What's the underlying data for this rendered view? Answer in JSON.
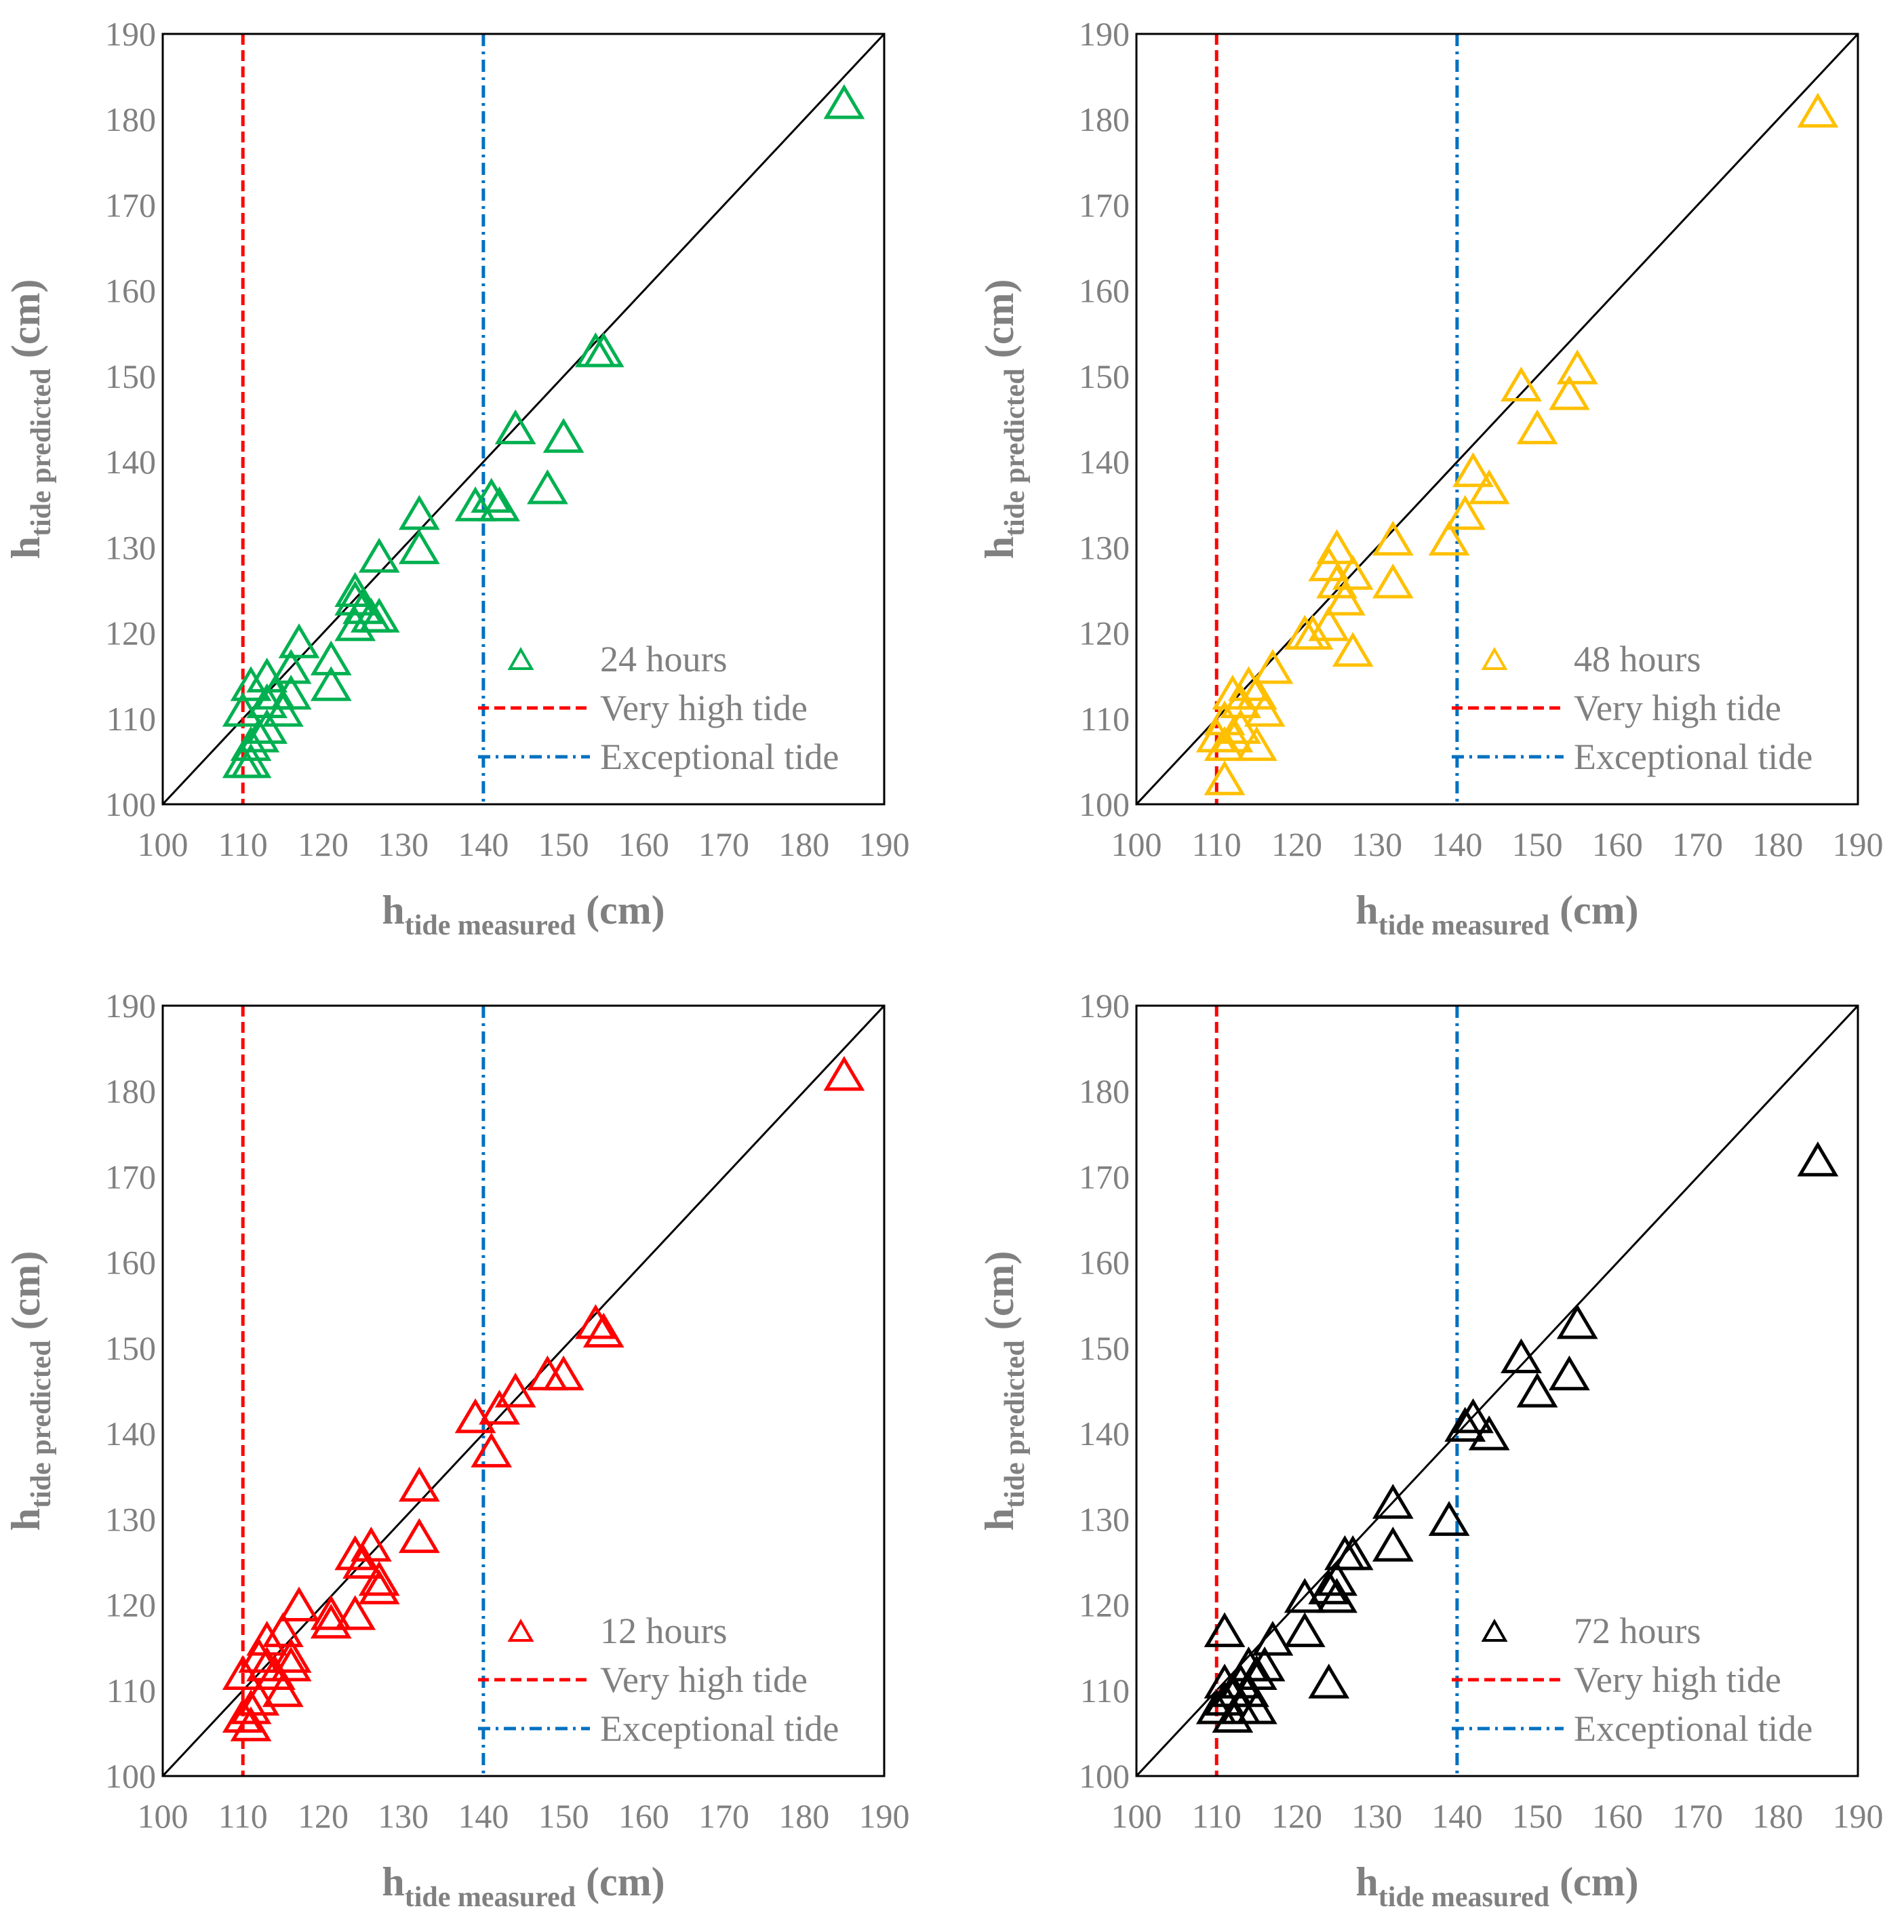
{
  "chart_data": [
    {
      "type": "scatter",
      "xlabel": {
        "main": "h",
        "sub": "tide measured",
        "unit": " (cm)"
      },
      "ylabel": {
        "main": "h",
        "sub": "tide predicted",
        "unit": " (cm)"
      },
      "xlim": [
        100,
        190
      ],
      "ylim": [
        100,
        190
      ],
      "ticks": [
        100,
        110,
        120,
        130,
        140,
        150,
        160,
        170,
        180,
        190
      ],
      "grid": false,
      "legend_position": "bottom-right",
      "reference_line": "y = x",
      "thresholds": [
        {
          "label": "Very high tide",
          "value": 110,
          "color": "#ff0000",
          "style": "dashed"
        },
        {
          "label": "Exceptional tide",
          "value": 140,
          "color": "#0070c0",
          "style": "dash-dot"
        }
      ],
      "series": [
        {
          "name": "24 hours",
          "color": "#00b050",
          "marker": "triangle-open",
          "points": [
            [
              185,
              182
            ],
            [
              155,
              153
            ],
            [
              154,
              153
            ],
            [
              150,
              143
            ],
            [
              148,
              137
            ],
            [
              144,
              144
            ],
            [
              142,
              135
            ],
            [
              141,
              136
            ],
            [
              139,
              135
            ],
            [
              132,
              134
            ],
            [
              132,
              130
            ],
            [
              127,
              129
            ],
            [
              127,
              122
            ],
            [
              126,
              122
            ],
            [
              125,
              123
            ],
            [
              124,
              125
            ],
            [
              124,
              124
            ],
            [
              124,
              121
            ],
            [
              121,
              117
            ],
            [
              121,
              114
            ],
            [
              117,
              119
            ],
            [
              116,
              116
            ],
            [
              116,
              113
            ],
            [
              115,
              111
            ],
            [
              114,
              113
            ],
            [
              113,
              115
            ],
            [
              113,
              112
            ],
            [
              113,
              109
            ],
            [
              112,
              108
            ],
            [
              111,
              114
            ],
            [
              111,
              107
            ],
            [
              111,
              105
            ],
            [
              110,
              111
            ],
            [
              110,
              105
            ]
          ]
        }
      ]
    },
    {
      "type": "scatter",
      "xlabel": {
        "main": "h",
        "sub": "tide measured",
        "unit": " (cm)"
      },
      "ylabel": {
        "main": "h",
        "sub": "tide predicted",
        "unit": " (cm)"
      },
      "xlim": [
        100,
        190
      ],
      "ylim": [
        100,
        190
      ],
      "ticks": [
        100,
        110,
        120,
        130,
        140,
        150,
        160,
        170,
        180,
        190
      ],
      "grid": false,
      "legend_position": "bottom-right",
      "reference_line": "y = x",
      "thresholds": [
        {
          "label": "Very high tide",
          "value": 110,
          "color": "#ff0000",
          "style": "dashed"
        },
        {
          "label": "Exceptional tide",
          "value": 140,
          "color": "#0070c0",
          "style": "dash-dot"
        }
      ],
      "series": [
        {
          "name": "48 hours",
          "color": "#ffc000",
          "marker": "triangle-open",
          "points": [
            [
              185,
              181
            ],
            [
              155,
              151
            ],
            [
              154,
              148
            ],
            [
              150,
              144
            ],
            [
              148,
              149
            ],
            [
              144,
              137
            ],
            [
              142,
              139
            ],
            [
              141,
              134
            ],
            [
              139,
              131
            ],
            [
              132,
              131
            ],
            [
              132,
              126
            ],
            [
              127,
              127
            ],
            [
              127,
              118
            ],
            [
              126,
              124
            ],
            [
              125,
              130
            ],
            [
              125,
              126
            ],
            [
              124,
              128
            ],
            [
              124,
              121
            ],
            [
              122,
              120
            ],
            [
              121,
              120
            ],
            [
              117,
              116
            ],
            [
              116,
              111
            ],
            [
              115,
              113
            ],
            [
              115,
              107
            ],
            [
              114,
              114
            ],
            [
              113,
              112
            ],
            [
              113,
              109
            ],
            [
              112,
              113
            ],
            [
              112,
              108
            ],
            [
              111,
              110
            ],
            [
              111,
              107
            ],
            [
              111,
              103
            ],
            [
              110,
              108
            ]
          ]
        }
      ]
    },
    {
      "type": "scatter",
      "xlabel": {
        "main": "h",
        "sub": "tide measured",
        "unit": " (cm)"
      },
      "ylabel": {
        "main": "h",
        "sub": "tide predicted",
        "unit": " (cm)"
      },
      "xlim": [
        100,
        190
      ],
      "ylim": [
        100,
        190
      ],
      "ticks": [
        100,
        110,
        120,
        130,
        140,
        150,
        160,
        170,
        180,
        190
      ],
      "grid": false,
      "legend_position": "bottom-right",
      "reference_line": "y = x",
      "thresholds": [
        {
          "label": "Very high tide",
          "value": 110,
          "color": "#ff0000",
          "style": "dashed"
        },
        {
          "label": "Exceptional tide",
          "value": 140,
          "color": "#0070c0",
          "style": "dash-dot"
        }
      ],
      "series": [
        {
          "name": "12 hours",
          "color": "#ff0000",
          "marker": "triangle-open",
          "points": [
            [
              185,
              182
            ],
            [
              155,
              152
            ],
            [
              154,
              153
            ],
            [
              150,
              147
            ],
            [
              148,
              147
            ],
            [
              144,
              145
            ],
            [
              142,
              143
            ],
            [
              141,
              138
            ],
            [
              139,
              142
            ],
            [
              132,
              134
            ],
            [
              132,
              128
            ],
            [
              127,
              123
            ],
            [
              127,
              122
            ],
            [
              126,
              127
            ],
            [
              125,
              125
            ],
            [
              124,
              126
            ],
            [
              124,
              119
            ],
            [
              121,
              119
            ],
            [
              121,
              118
            ],
            [
              117,
              120
            ],
            [
              116,
              114
            ],
            [
              116,
              113
            ],
            [
              115,
              117
            ],
            [
              115,
              110
            ],
            [
              114,
              112
            ],
            [
              113,
              116
            ],
            [
              113,
              113
            ],
            [
              112,
              114
            ],
            [
              112,
              109
            ],
            [
              111,
              108
            ],
            [
              111,
              106
            ],
            [
              110,
              112
            ],
            [
              110,
              107
            ]
          ]
        }
      ]
    },
    {
      "type": "scatter",
      "xlabel": {
        "main": "h",
        "sub": "tide measured",
        "unit": " (cm)"
      },
      "ylabel": {
        "main": "h",
        "sub": "tide predicted",
        "unit": " (cm)"
      },
      "xlim": [
        100,
        190
      ],
      "ylim": [
        100,
        190
      ],
      "ticks": [
        100,
        110,
        120,
        130,
        140,
        150,
        160,
        170,
        180,
        190
      ],
      "grid": false,
      "legend_position": "bottom-right",
      "reference_line": "y = x",
      "thresholds": [
        {
          "label": "Very high tide",
          "value": 110,
          "color": "#ff0000",
          "style": "dashed"
        },
        {
          "label": "Exceptional tide",
          "value": 140,
          "color": "#0070c0",
          "style": "dash-dot"
        }
      ],
      "series": [
        {
          "name": "72 hours",
          "color": "#000000",
          "marker": "triangle-open",
          "points": [
            [
              185,
              172
            ],
            [
              155,
              153
            ],
            [
              154,
              147
            ],
            [
              150,
              145
            ],
            [
              148,
              149
            ],
            [
              144,
              140
            ],
            [
              142,
              142
            ],
            [
              141,
              141
            ],
            [
              139,
              130
            ],
            [
              132,
              132
            ],
            [
              132,
              127
            ],
            [
              127,
              126
            ],
            [
              126,
              126
            ],
            [
              125,
              123
            ],
            [
              125,
              121
            ],
            [
              124,
              122
            ],
            [
              124,
              111
            ],
            [
              121,
              121
            ],
            [
              121,
              117
            ],
            [
              117,
              116
            ],
            [
              116,
              113
            ],
            [
              115,
              112
            ],
            [
              115,
              108
            ],
            [
              114,
              113
            ],
            [
              114,
              110
            ],
            [
              113,
              111
            ],
            [
              113,
              108
            ],
            [
              112,
              110
            ],
            [
              112,
              107
            ],
            [
              111,
              117
            ],
            [
              111,
              111
            ],
            [
              111,
              109
            ],
            [
              110,
              108
            ]
          ]
        }
      ]
    }
  ]
}
